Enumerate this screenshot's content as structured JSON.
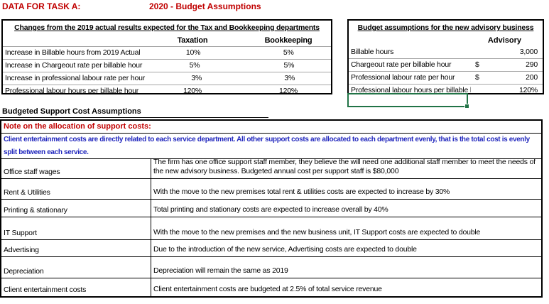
{
  "page": {
    "task_label": "DATA FOR TASK A:",
    "title": "2020 - Budget Assumptions"
  },
  "colors": {
    "accent_red": "#C00000",
    "note_blue": "#2228BE",
    "selection_green": "#217346"
  },
  "changes_table": {
    "title": "Changes from the 2019 actual results expected for the Tax and Bookkeeping departments",
    "columns": [
      "Taxation",
      "Bookkeeping"
    ],
    "rows": [
      {
        "label": "Increase in Billable hours from 2019 Actual",
        "taxation": "10%",
        "bookkeeping": "5%"
      },
      {
        "label": "Increase in Chargeout rate per billable hour",
        "taxation": "5%",
        "bookkeeping": "5%"
      },
      {
        "label": "Increase in professional labour rate per hour",
        "taxation": "3%",
        "bookkeeping": "3%"
      },
      {
        "label": "Professional labour hours per billable hour",
        "taxation": "120%",
        "bookkeeping": "120%"
      }
    ]
  },
  "advisory_table": {
    "title": "Budget assumptions for the new advisory business",
    "column": "Advisory",
    "rows": [
      {
        "label": "Billable hours",
        "currency": "",
        "value": "3,000"
      },
      {
        "label": "Chargeout rate per billable hour",
        "currency": "$",
        "value": "290"
      },
      {
        "label": "Professional labour rate per hour",
        "currency": "$",
        "value": "200"
      },
      {
        "label": "Professional labour hours per billable hour",
        "currency": "",
        "value": "120%"
      }
    ]
  },
  "support_section": {
    "heading": "Budgeted Support Cost Assumptions",
    "note_label": "Note on the allocation of support costs:",
    "note_body": "Client entertainment costs are directly related to each service department. All other support costs are allocated to each department evenly, that is the total cost is evenly split between each service.",
    "rows": [
      {
        "label": "Office staff wages",
        "description": "The firm has one office support staff member, they believe the will need one additional staff member to meet the needs of the new advisory business. Budgeted annual cost per support staff is $80,000"
      },
      {
        "label": "Rent & Utilities",
        "description": "With the move to the new premises total rent & utilities costs are expected to increase by 30%"
      },
      {
        "label": "Printing & stationary",
        "description": "Total printing and stationary costs are expected to increase overall by 40%"
      },
      {
        "label": "IT Support",
        "description": "With the move to the new premises and the new business unit, IT Support costs are expected to double"
      },
      {
        "label": "Advertising",
        "description": "Due to the introduction of the new service, Advertising costs are expected to double"
      },
      {
        "label": "Depreciation",
        "description": "Depreciation will remain the same as 2019"
      },
      {
        "label": "Client entertainment costs",
        "description": "Client entertainment costs are budgeted at 2.5% of total service revenue"
      }
    ]
  }
}
